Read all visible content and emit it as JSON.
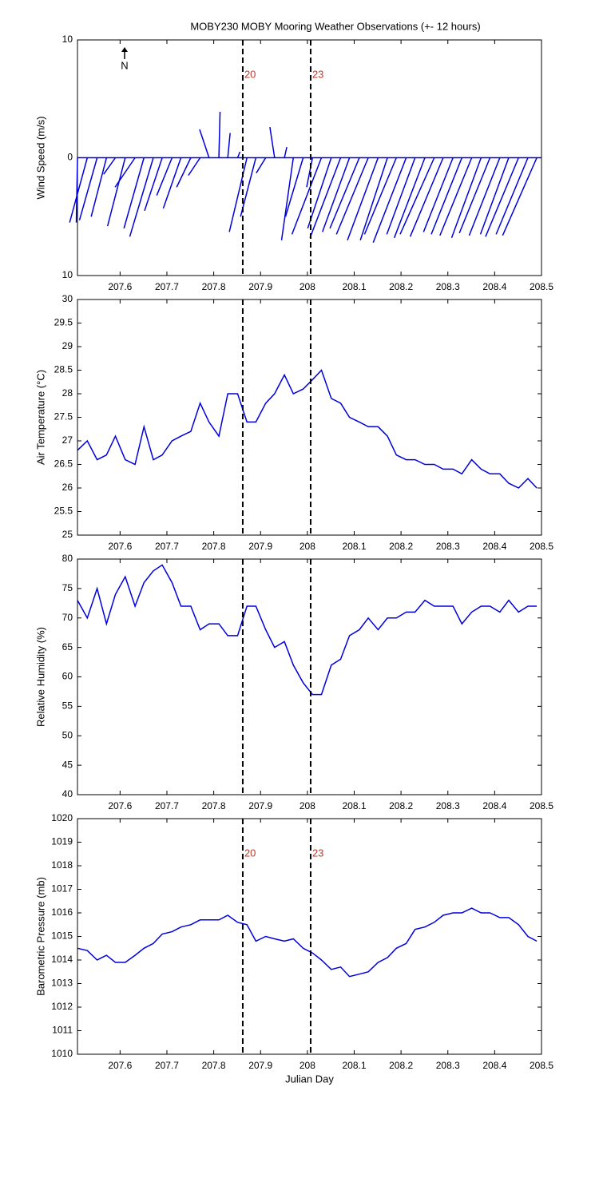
{
  "chart_data": [
    {
      "type": "stick",
      "title": "MOBY230 MOBY Mooring Weather Observations (+- 12 hours)",
      "ylabel": "Wind Speed (m/s)",
      "north_label": "N",
      "color": "#0000dd",
      "xlim": [
        207.509,
        208.5
      ],
      "xticks": [
        207.6,
        207.7,
        207.8,
        207.9,
        208,
        208.1,
        208.2,
        208.3,
        208.4,
        208.5
      ],
      "ylim": [
        -10,
        10
      ],
      "yticks": [
        {
          "value": -10,
          "label": "10"
        },
        0,
        10
      ],
      "vlines": [
        207.862,
        208.007
      ],
      "vline_labels": [
        "20",
        "23"
      ],
      "x": [
        207.509,
        207.53,
        207.551,
        207.571,
        207.59,
        207.611,
        207.632,
        207.651,
        207.671,
        207.69,
        207.711,
        207.73,
        207.751,
        207.771,
        207.79,
        207.811,
        207.83,
        207.851,
        207.871,
        207.89,
        207.911,
        207.93,
        207.951,
        207.97,
        207.991,
        208.011,
        208.03,
        208.051,
        208.071,
        208.09,
        208.111,
        208.13,
        208.151,
        208.171,
        208.19,
        208.211,
        208.23,
        208.251,
        208.271,
        208.29,
        208.311,
        208.33,
        208.351,
        208.371,
        208.39,
        208.411,
        208.43,
        208.451,
        208.471,
        208.49
      ],
      "u": [
        -0.1,
        -1.5,
        -1.5,
        -1.3,
        -1.0,
        -1.5,
        -1.7,
        -1.7,
        -2.0,
        -1.5,
        -1.3,
        -1.5,
        -1.2,
        -1.0,
        -0.8,
        0.1,
        0.2,
        0.2,
        -1.5,
        -1.3,
        -0.8,
        -0.4,
        0.2,
        -1.0,
        -1.5,
        -0.5,
        -2.5,
        -2.0,
        -2.6,
        -2.3,
        -2.5,
        -2.7,
        -2.6,
        -2.3,
        -2.7,
        -2.8,
        -2.4,
        -2.6,
        -2.9,
        -2.8,
        -2.5,
        -2.6,
        -2.7,
        -2.5,
        -2.6,
        -2.6,
        -2.4,
        -2.8,
        -2.7,
        -2.9
      ],
      "v": [
        -5.5,
        -5.5,
        -5.3,
        -5.0,
        -1.4,
        -5.8,
        -2.5,
        -6.0,
        -6.7,
        -4.5,
        -3.2,
        -4.3,
        -2.5,
        -1.5,
        2.4,
        3.9,
        2.1,
        0.5,
        -6.3,
        -5.0,
        -1.3,
        2.6,
        0.9,
        -7.0,
        -5.0,
        -2.5,
        -6.5,
        -6.0,
        -6.8,
        -6.3,
        -6.0,
        -6.5,
        -7.0,
        -7.0,
        -6.5,
        -7.2,
        -6.5,
        -6.8,
        -6.5,
        -6.7,
        -6.3,
        -6.5,
        -6.6,
        -6.8,
        -6.4,
        -6.6,
        -6.5,
        -6.7,
        -6.5,
        -6.6
      ]
    },
    {
      "type": "line",
      "ylabel": "Air Temperature (°C)",
      "color": "#0000dd",
      "xlim": [
        207.509,
        208.5
      ],
      "xticks": [
        207.6,
        207.7,
        207.8,
        207.9,
        208,
        208.1,
        208.2,
        208.3,
        208.4,
        208.5
      ],
      "ylim": [
        25,
        30
      ],
      "yticks": [
        25,
        25.5,
        26,
        26.5,
        27,
        27.5,
        28,
        28.5,
        29,
        29.5,
        30
      ],
      "vlines": [
        207.862,
        208.007
      ],
      "x": [
        207.509,
        207.53,
        207.551,
        207.571,
        207.59,
        207.611,
        207.632,
        207.651,
        207.671,
        207.69,
        207.711,
        207.73,
        207.751,
        207.771,
        207.79,
        207.811,
        207.83,
        207.851,
        207.871,
        207.89,
        207.911,
        207.93,
        207.951,
        207.97,
        207.991,
        208.011,
        208.03,
        208.051,
        208.071,
        208.09,
        208.111,
        208.13,
        208.151,
        208.171,
        208.19,
        208.211,
        208.23,
        208.251,
        208.271,
        208.29,
        208.311,
        208.33,
        208.351,
        208.371,
        208.39,
        208.411,
        208.43,
        208.451,
        208.471,
        208.49
      ],
      "values": [
        26.8,
        27.0,
        26.6,
        26.7,
        27.1,
        26.6,
        26.5,
        27.3,
        26.6,
        26.7,
        27.0,
        27.1,
        27.2,
        27.8,
        27.4,
        27.1,
        28.0,
        28.0,
        27.4,
        27.4,
        27.8,
        28.0,
        28.4,
        28.0,
        28.1,
        28.3,
        28.5,
        27.9,
        27.8,
        27.5,
        27.4,
        27.3,
        27.3,
        27.1,
        26.7,
        26.6,
        26.6,
        26.5,
        26.5,
        26.4,
        26.4,
        26.3,
        26.6,
        26.4,
        26.3,
        26.3,
        26.1,
        26.0,
        26.2,
        26.0
      ]
    },
    {
      "type": "line",
      "ylabel": "Relative Humidity (%)",
      "color": "#0000dd",
      "xlim": [
        207.509,
        208.5
      ],
      "xticks": [
        207.6,
        207.7,
        207.8,
        207.9,
        208,
        208.1,
        208.2,
        208.3,
        208.4,
        208.5
      ],
      "ylim": [
        40,
        80
      ],
      "yticks": [
        40,
        45,
        50,
        55,
        60,
        65,
        70,
        75,
        80
      ],
      "vlines": [
        207.862,
        208.007
      ],
      "x": [
        207.509,
        207.53,
        207.551,
        207.571,
        207.59,
        207.611,
        207.632,
        207.651,
        207.671,
        207.69,
        207.711,
        207.73,
        207.751,
        207.771,
        207.79,
        207.811,
        207.83,
        207.851,
        207.871,
        207.89,
        207.911,
        207.93,
        207.951,
        207.97,
        207.991,
        208.011,
        208.03,
        208.051,
        208.071,
        208.09,
        208.111,
        208.13,
        208.151,
        208.171,
        208.19,
        208.211,
        208.23,
        208.251,
        208.271,
        208.29,
        208.311,
        208.33,
        208.351,
        208.371,
        208.39,
        208.411,
        208.43,
        208.451,
        208.471,
        208.49
      ],
      "values": [
        73,
        70,
        75,
        69,
        74,
        77,
        72,
        76,
        78,
        79,
        76,
        72,
        72,
        68,
        69,
        69,
        67,
        67,
        72,
        72,
        68,
        65,
        66,
        62,
        59,
        57,
        57,
        62,
        63,
        67,
        68,
        70,
        68,
        70,
        70,
        71,
        71,
        73,
        72,
        72,
        72,
        69,
        71,
        72,
        72,
        71,
        73,
        71,
        72,
        72
      ]
    },
    {
      "type": "line",
      "ylabel": "Barometric Pressure (mb)",
      "xlabel": "Julian Day",
      "color": "#0000dd",
      "xlim": [
        207.509,
        208.5
      ],
      "xticks": [
        207.6,
        207.7,
        207.8,
        207.9,
        208,
        208.1,
        208.2,
        208.3,
        208.4,
        208.5
      ],
      "ylim": [
        1010,
        1020
      ],
      "yticks": [
        1010,
        1011,
        1012,
        1013,
        1014,
        1015,
        1016,
        1017,
        1018,
        1019,
        1020
      ],
      "vlines": [
        207.862,
        208.007
      ],
      "vline_labels": [
        "20",
        "23"
      ],
      "x": [
        207.509,
        207.53,
        207.551,
        207.571,
        207.59,
        207.611,
        207.632,
        207.651,
        207.671,
        207.69,
        207.711,
        207.73,
        207.751,
        207.771,
        207.79,
        207.811,
        207.83,
        207.851,
        207.871,
        207.89,
        207.911,
        207.93,
        207.951,
        207.97,
        207.991,
        208.011,
        208.03,
        208.051,
        208.071,
        208.09,
        208.111,
        208.13,
        208.151,
        208.171,
        208.19,
        208.211,
        208.23,
        208.251,
        208.271,
        208.29,
        208.311,
        208.33,
        208.351,
        208.371,
        208.39,
        208.411,
        208.43,
        208.451,
        208.471,
        208.49
      ],
      "values": [
        1014.5,
        1014.4,
        1014.0,
        1014.2,
        1013.9,
        1013.9,
        1014.2,
        1014.5,
        1014.7,
        1015.1,
        1015.2,
        1015.4,
        1015.5,
        1015.7,
        1015.7,
        1015.7,
        1015.9,
        1015.6,
        1015.5,
        1014.8,
        1015.0,
        1014.9,
        1014.8,
        1014.9,
        1014.5,
        1014.3,
        1014.0,
        1013.6,
        1013.7,
        1013.3,
        1013.4,
        1013.5,
        1013.9,
        1014.1,
        1014.5,
        1014.7,
        1015.3,
        1015.4,
        1015.6,
        1015.9,
        1016.0,
        1016.0,
        1016.2,
        1016.0,
        1016.0,
        1015.8,
        1015.8,
        1015.5,
        1015.0,
        1014.8
      ]
    }
  ]
}
